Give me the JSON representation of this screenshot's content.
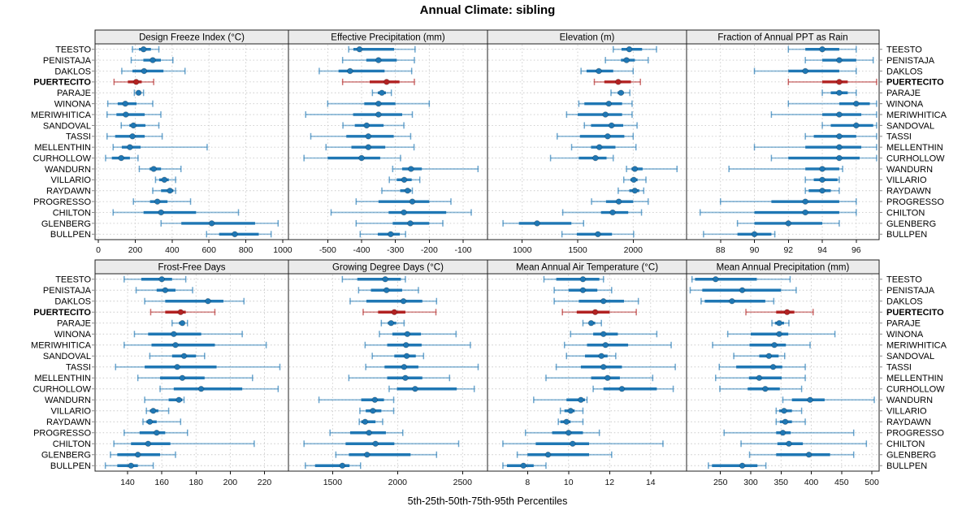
{
  "title": "Annual Climate: sibling",
  "caption": "5th-25th-50th-75th-95th Percentiles",
  "highlight_site": "PUERTECITO",
  "colors": {
    "normal": "#1f77b4",
    "highlight": "#b22222",
    "strip_bg": "#ebebeb",
    "panel_border": "#222222",
    "grid": "#c9c9c9",
    "tick": "#111111",
    "text": "#000000"
  },
  "sites": [
    "TEESTO",
    "PENISTAJA",
    "DAKLOS",
    "PUERTECITO",
    "PARAJE",
    "WINONA",
    "MERIWHITICA",
    "SANDOVAL",
    "TASSI",
    "MELLENTHIN",
    "CURHOLLOW",
    "WANDURN",
    "VILLARIO",
    "RAYDAWN",
    "PROGRESSO",
    "CHILTON",
    "GLENBERG",
    "BULLPEN"
  ],
  "chart_data": {
    "type": "trellis-percentile-dotplot",
    "grid": "dotted",
    "legend_position": "none",
    "site_labels": "both-sides",
    "percentiles": [
      5,
      25,
      50,
      75,
      95
    ],
    "panels": [
      {
        "title": "Design Freeze Index (°C)",
        "slug": "design-freeze-index",
        "row": 0,
        "col": 0,
        "xlim": [
          -18,
          1031
        ],
        "ticks": [
          0,
          200,
          400,
          600,
          800,
          1000
        ],
        "series": [
          [
            185,
            220,
            245,
            285,
            328
          ],
          [
            178,
            244,
            295,
            339,
            404
          ],
          [
            127,
            185,
            248,
            353,
            470
          ],
          [
            85,
            160,
            205,
            235,
            300
          ],
          [
            195,
            208,
            218,
            228,
            245
          ],
          [
            51,
            105,
            146,
            207,
            295
          ],
          [
            47,
            98,
            149,
            251,
            339
          ],
          [
            124,
            168,
            190,
            255,
            328
          ],
          [
            47,
            91,
            185,
            251,
            346
          ],
          [
            80,
            127,
            171,
            229,
            590
          ],
          [
            39,
            73,
            124,
            171,
            215
          ],
          [
            222,
            278,
            300,
            340,
            448
          ],
          [
            310,
            330,
            358,
            382,
            419
          ],
          [
            295,
            340,
            388,
            407,
            419
          ],
          [
            190,
            280,
            320,
            375,
            500
          ],
          [
            80,
            245,
            340,
            530,
            760
          ],
          [
            340,
            450,
            615,
            850,
            975
          ],
          [
            587,
            655,
            740,
            870,
            937
          ]
        ]
      },
      {
        "title": "Effective Precipitation (mm)",
        "slug": "effective-precipitation",
        "row": 0,
        "col": 1,
        "xlim": [
          -616,
          -28
        ],
        "ticks": [
          -500,
          -400,
          -300,
          -200,
          -100
        ],
        "series": [
          [
            -438,
            -424,
            -406,
            -304,
            -242
          ],
          [
            -456,
            -386,
            -350,
            -296,
            -244
          ],
          [
            -525,
            -468,
            -434,
            -332,
            -252
          ],
          [
            -456,
            -376,
            -326,
            -288,
            -244
          ],
          [
            -368,
            -352,
            -340,
            -328,
            -312
          ],
          [
            -500,
            -392,
            -350,
            -300,
            -200
          ],
          [
            -565,
            -425,
            -350,
            -280,
            -250
          ],
          [
            -455,
            -420,
            -385,
            -335,
            -275
          ],
          [
            -550,
            -445,
            -380,
            -305,
            -255
          ],
          [
            -505,
            -430,
            -380,
            -330,
            -245
          ],
          [
            -570,
            -500,
            -400,
            -345,
            -285
          ],
          [
            -308,
            -280,
            -254,
            -222,
            -56
          ],
          [
            -318,
            -296,
            -274,
            -252,
            -228
          ],
          [
            -340,
            -286,
            -264,
            -254,
            -250
          ],
          [
            -416,
            -350,
            -250,
            -200,
            -136
          ],
          [
            -490,
            -320,
            -275,
            -150,
            -76
          ],
          [
            -416,
            -308,
            -256,
            -200,
            -160
          ],
          [
            -404,
            -352,
            -314,
            -287,
            -270
          ]
        ]
      },
      {
        "title": "Elevation (m)",
        "slug": "elevation",
        "row": 0,
        "col": 2,
        "xlim": [
          687,
          2481
        ],
        "ticks": [
          1000,
          1500,
          2000
        ],
        "series": [
          [
            1820,
            1895,
            1965,
            2080,
            2210
          ],
          [
            1750,
            1890,
            1940,
            2015,
            2135
          ],
          [
            1530,
            1580,
            1690,
            1820,
            2000
          ],
          [
            1650,
            1740,
            1865,
            1980,
            2065
          ],
          [
            1800,
            1860,
            1890,
            1915,
            1970
          ],
          [
            1510,
            1560,
            1780,
            1900,
            1990
          ],
          [
            1400,
            1500,
            1750,
            1900,
            1990
          ],
          [
            1560,
            1620,
            1805,
            1910,
            2035
          ],
          [
            1315,
            1520,
            1770,
            1920,
            2000
          ],
          [
            1445,
            1620,
            1695,
            1840,
            2025
          ],
          [
            1255,
            1510,
            1660,
            1760,
            1820
          ],
          [
            1940,
            1985,
            2015,
            2085,
            2395
          ],
          [
            1915,
            1975,
            2005,
            2040,
            2115
          ],
          [
            1865,
            1965,
            2015,
            2055,
            2095
          ],
          [
            1625,
            1755,
            1870,
            2000,
            2135
          ],
          [
            1365,
            1710,
            1815,
            1955,
            2075
          ],
          [
            827,
            970,
            1134,
            1443,
            1553
          ],
          [
            1358,
            1492,
            1682,
            1809,
            2004
          ]
        ]
      },
      {
        "title": "Fraction of Annual PPT as Rain",
        "slug": "fraction-ppt-rain",
        "row": 0,
        "col": 3,
        "xlim": [
          86,
          97.35
        ],
        "ticks": [
          88,
          90,
          92,
          94,
          96
        ],
        "series": [
          [
            92,
            93,
            94,
            95,
            96
          ],
          [
            93,
            94,
            95,
            96,
            97
          ],
          [
            90,
            92,
            93,
            95,
            96
          ],
          [
            92,
            94,
            95,
            95.5,
            97.2
          ],
          [
            94,
            94.5,
            95,
            95.5,
            96
          ],
          [
            92,
            95,
            96,
            96.8,
            97.2
          ],
          [
            91,
            94,
            95,
            96.3,
            97.2
          ],
          [
            94,
            94.5,
            96,
            97,
            97.2
          ],
          [
            93,
            93.5,
            95,
            96,
            97.2
          ],
          [
            90,
            93,
            95,
            96.3,
            97.2
          ],
          [
            91,
            92,
            95,
            96.2,
            97.2
          ],
          [
            88.5,
            93,
            94,
            95,
            95.2
          ],
          [
            93,
            93.5,
            94,
            94.9,
            95
          ],
          [
            93,
            93.2,
            94,
            94.5,
            95
          ],
          [
            88,
            91,
            93,
            95,
            96
          ],
          [
            86.8,
            90,
            93,
            95,
            96
          ],
          [
            89,
            90,
            92,
            94,
            95
          ],
          [
            87,
            89,
            90,
            91,
            91.2
          ]
        ]
      },
      {
        "title": "Frost-Free Days",
        "slug": "frost-free-days",
        "row": 1,
        "col": 0,
        "xlim": [
          121,
          234
        ],
        "ticks": [
          140,
          160,
          180,
          200,
          220
        ],
        "series": [
          [
            138,
            148,
            160,
            166,
            174
          ],
          [
            145,
            157,
            162,
            168,
            178
          ],
          [
            150,
            162,
            187,
            196,
            208
          ],
          [
            153.5,
            162,
            171,
            174,
            191
          ],
          [
            166,
            170,
            172,
            173,
            175
          ],
          [
            144,
            152,
            167,
            183,
            207
          ],
          [
            138,
            154,
            168,
            191,
            221
          ],
          [
            153,
            166,
            173,
            180,
            185
          ],
          [
            133,
            150,
            169,
            192,
            229
          ],
          [
            146,
            159,
            172,
            185,
            213
          ],
          [
            159,
            167,
            183,
            207,
            228
          ],
          [
            150,
            164,
            170,
            172,
            173
          ],
          [
            151,
            153,
            155,
            158,
            164
          ],
          [
            149,
            151,
            153,
            157,
            171
          ],
          [
            138,
            147,
            157,
            162,
            175
          ],
          [
            132,
            142,
            152,
            165,
            214
          ],
          [
            130,
            134,
            146,
            159,
            168
          ],
          [
            127,
            134,
            142,
            146,
            155
          ]
        ]
      },
      {
        "title": "Growing Degree Days (°C)",
        "slug": "growing-degree-days",
        "row": 1,
        "col": 1,
        "xlim": [
          1160,
          2692
        ],
        "ticks": [
          1500,
          2000,
          2500
        ],
        "series": [
          [
            1575,
            1690,
            1905,
            2025,
            2060
          ],
          [
            1700,
            1795,
            1915,
            2035,
            2160
          ],
          [
            1635,
            1760,
            2045,
            2190,
            2300
          ],
          [
            1735,
            1850,
            1975,
            2060,
            2295
          ],
          [
            1875,
            1925,
            1950,
            1990,
            2050
          ],
          [
            1860,
            1960,
            2075,
            2180,
            2450
          ],
          [
            1750,
            1920,
            2065,
            2185,
            2560
          ],
          [
            1805,
            1975,
            2070,
            2140,
            2200
          ],
          [
            1755,
            1900,
            2050,
            2160,
            2620
          ],
          [
            1625,
            1920,
            2060,
            2190,
            2400
          ],
          [
            1935,
            1995,
            2135,
            2455,
            2590
          ],
          [
            1395,
            1720,
            1825,
            1895,
            1970
          ],
          [
            1710,
            1755,
            1810,
            1875,
            1970
          ],
          [
            1705,
            1720,
            1750,
            1830,
            1885
          ],
          [
            1480,
            1635,
            1780,
            1910,
            2040
          ],
          [
            1280,
            1600,
            1830,
            1975,
            2470
          ],
          [
            1525,
            1625,
            1765,
            2100,
            2300
          ],
          [
            1290,
            1365,
            1575,
            1630,
            1715
          ]
        ]
      },
      {
        "title": "Mean Annual Air Temperature (°C)",
        "slug": "mean-annual-air-temperature",
        "row": 1,
        "col": 2,
        "xlim": [
          6.05,
          15.75
        ],
        "ticks": [
          8,
          10,
          12,
          14
        ],
        "series": [
          [
            8.8,
            9.4,
            10.7,
            11.5,
            11.7
          ],
          [
            9.3,
            10.0,
            10.7,
            11.4,
            12.1
          ],
          [
            9.3,
            10.5,
            11.7,
            12.7,
            13.4
          ],
          [
            9.7,
            10.4,
            11.3,
            12.0,
            13.3
          ],
          [
            10.7,
            11.0,
            11.1,
            11.3,
            11.6
          ],
          [
            10.1,
            11.2,
            11.7,
            12.4,
            14.3
          ],
          [
            9.8,
            10.9,
            11.8,
            12.9,
            15.0
          ],
          [
            9.9,
            10.8,
            11.6,
            11.9,
            12.3
          ],
          [
            9.4,
            10.6,
            11.7,
            12.6,
            15.2
          ],
          [
            8.9,
            11.1,
            11.9,
            12.5,
            14.1
          ],
          [
            11.2,
            11.7,
            12.6,
            14.3,
            15.1
          ],
          [
            8.3,
            9.9,
            10.6,
            10.8,
            10.9
          ],
          [
            9.6,
            9.8,
            10.1,
            10.3,
            10.7
          ],
          [
            9.5,
            9.6,
            9.9,
            10.1,
            10.7
          ],
          [
            7.9,
            9.2,
            10.0,
            10.7,
            11.5
          ],
          [
            6.8,
            8.4,
            10.2,
            11.0,
            14.6
          ],
          [
            7.5,
            8.0,
            9.0,
            11.0,
            12.1
          ],
          [
            6.8,
            7.0,
            7.8,
            8.3,
            8.9
          ]
        ]
      },
      {
        "title": "Mean Annual Precipitation (mm)",
        "slug": "mean-annual-precipitation",
        "row": 1,
        "col": 3,
        "xlim": [
          194,
          512
        ],
        "ticks": [
          250,
          300,
          350,
          400,
          450,
          500
        ],
        "series": [
          [
            203,
            208,
            242,
            310,
            365
          ],
          [
            200,
            220,
            286,
            350,
            375
          ],
          [
            218,
            224,
            269,
            324,
            338
          ],
          [
            292,
            342,
            360,
            372,
            403
          ],
          [
            335,
            340,
            347,
            355,
            363
          ],
          [
            262,
            300,
            347,
            362,
            439
          ],
          [
            237,
            298,
            339,
            358,
            398
          ],
          [
            272,
            314,
            330,
            346,
            356
          ],
          [
            248,
            276,
            337,
            352,
            390
          ],
          [
            242,
            297,
            314,
            351,
            390
          ],
          [
            249,
            295,
            324,
            348,
            384
          ],
          [
            353,
            368,
            398,
            422,
            504
          ],
          [
            342,
            347,
            355,
            368,
            384
          ],
          [
            342,
            348,
            357,
            368,
            390
          ],
          [
            256,
            342,
            353,
            366,
            470
          ],
          [
            284,
            344,
            363,
            386,
            491
          ],
          [
            298,
            342,
            396,
            431,
            470
          ],
          [
            230,
            236,
            286,
            311,
            325
          ]
        ]
      }
    ]
  }
}
